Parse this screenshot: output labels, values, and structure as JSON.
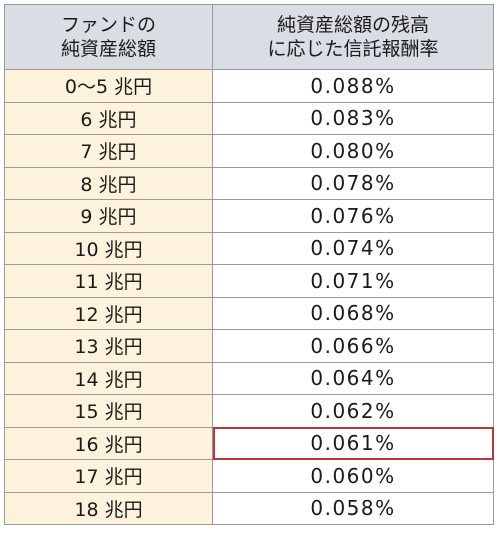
{
  "table": {
    "header": {
      "col1_line1": "ファンドの",
      "col1_line2": "純資産総額",
      "col2_line1": "純資産総額の残高",
      "col2_line2": "に応じた信託報酬率"
    },
    "rows": [
      {
        "amount": "0～5 兆円",
        "rate": "0.088%"
      },
      {
        "amount": "6 兆円",
        "rate": "0.083%"
      },
      {
        "amount": "7 兆円",
        "rate": "0.080%"
      },
      {
        "amount": "8 兆円",
        "rate": "0.078%"
      },
      {
        "amount": "9 兆円",
        "rate": "0.076%"
      },
      {
        "amount": "10 兆円",
        "rate": "0.074%"
      },
      {
        "amount": "11 兆円",
        "rate": "0.071%"
      },
      {
        "amount": "12 兆円",
        "rate": "0.068%"
      },
      {
        "amount": "13 兆円",
        "rate": "0.066%"
      },
      {
        "amount": "14 兆円",
        "rate": "0.064%"
      },
      {
        "amount": "15 兆円",
        "rate": "0.062%"
      },
      {
        "amount": "16 兆円",
        "rate": "0.061%"
      },
      {
        "amount": "17 兆円",
        "rate": "0.060%"
      },
      {
        "amount": "18 兆円",
        "rate": "0.058%"
      }
    ],
    "highlighted_row": 11,
    "colors": {
      "header_bg": "#d9dde4",
      "amount_bg": "#fdf3dd",
      "highlight_border": "#c0343a"
    }
  }
}
